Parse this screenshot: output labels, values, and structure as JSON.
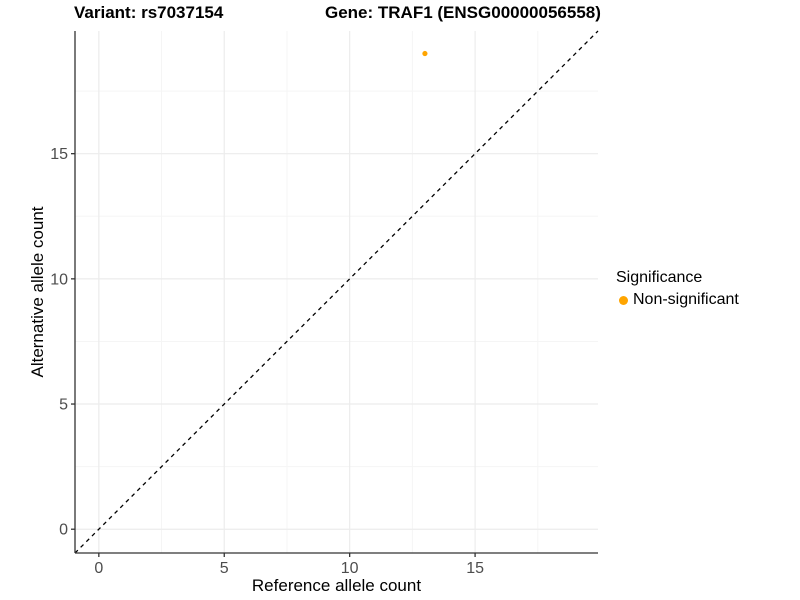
{
  "titles": {
    "left": "Variant: rs7037154",
    "right": "Gene: TRAF1 (ENSG00000056558)"
  },
  "chart_data": {
    "type": "scatter",
    "title": "Variant: rs7037154 / Gene: TRAF1 (ENSG00000056558)",
    "xlabel": "Reference allele count",
    "ylabel": "Alternative allele count",
    "xlim": [
      -0.95,
      19.9
    ],
    "ylim": [
      -0.95,
      19.9
    ],
    "x_ticks": [
      0,
      5,
      10,
      15
    ],
    "y_ticks": [
      0,
      5,
      10,
      15
    ],
    "minor_gridlines": [
      2.5,
      7.5,
      12.5,
      17.5
    ],
    "grid": "major+minor",
    "reference_line": {
      "type": "identity y=x",
      "style": "dashed",
      "color": "#000000"
    },
    "series": [
      {
        "name": "Non-significant",
        "color": "#FFA500",
        "points": [
          [
            13,
            19
          ]
        ]
      }
    ],
    "legend": {
      "title": "Significance",
      "position": "right",
      "items": [
        {
          "label": "Non-significant",
          "color": "#FFA500"
        }
      ]
    }
  },
  "colors": {
    "background": "#FFFFFF",
    "grid_major": "#ECECEC",
    "grid_minor": "#F5F5F5",
    "axis_line": "#333333",
    "tick_label": "#4D4D4D",
    "identity_line": "#000000"
  }
}
